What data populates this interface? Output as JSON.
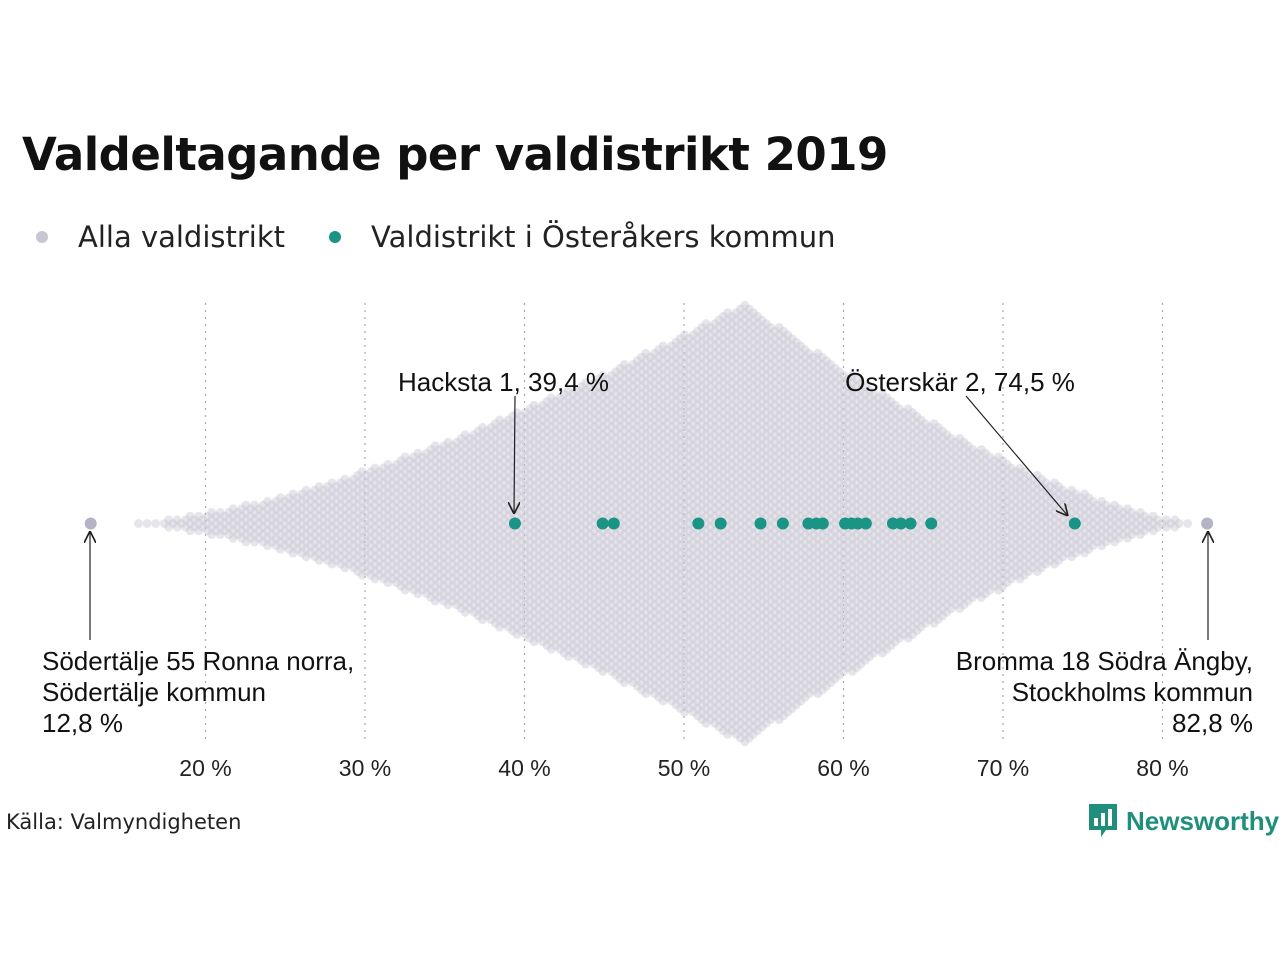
{
  "title": "Valdeltagande per valdistrikt 2019",
  "legend": {
    "all": {
      "label": "Alla valdistrikt",
      "color": "#c7c6d3"
    },
    "local": {
      "label": "Valdistrikt i Österåkers kommun",
      "color": "#1a9485"
    }
  },
  "source": "Källa: Valmyndigheten",
  "brand": {
    "name": "Newsworthy",
    "icon": "bar-chart-speech-bubble-icon",
    "color": "#1f8f7c"
  },
  "chart_data": {
    "type": "scatter",
    "subtype": "beeswarm",
    "xlim": [
      12,
      84
    ],
    "x_ticks": [
      20,
      30,
      40,
      50,
      60,
      70,
      80
    ],
    "x_tick_labels": [
      "20 %",
      "30 %",
      "40 %",
      "50 %",
      "60 %",
      "70 %",
      "80 %"
    ],
    "grid": "vertical dotted",
    "all_districts": {
      "range": [
        12.8,
        82.8
      ],
      "mode": 53.8
    },
    "series": [
      {
        "name": "Valdistrikt i Österåkers kommun",
        "color": "#1a9485",
        "values": [
          39.4,
          44.9,
          45.6,
          50.9,
          52.3,
          54.8,
          56.2,
          57.8,
          58.3,
          58.7,
          60.1,
          60.5,
          60.9,
          61.4,
          63.1,
          63.6,
          64.2,
          65.5,
          74.5
        ]
      }
    ],
    "annotations": [
      {
        "lines": [
          "Hacksta 1, 39,4 %"
        ],
        "value": 39.4,
        "anchor": "start"
      },
      {
        "lines": [
          "Österskär 2, 74,5 %"
        ],
        "value": 74.5,
        "anchor": "middle"
      },
      {
        "lines": [
          "Södertälje 55 Ronna norra,",
          "Södertälje kommun",
          "12,8 %"
        ],
        "value": 12.8,
        "anchor": "start"
      },
      {
        "lines": [
          "Bromma 18 Södra Ängby,",
          "Stockholms kommun",
          "82,8 %"
        ],
        "value": 82.8,
        "anchor": "end"
      }
    ]
  }
}
